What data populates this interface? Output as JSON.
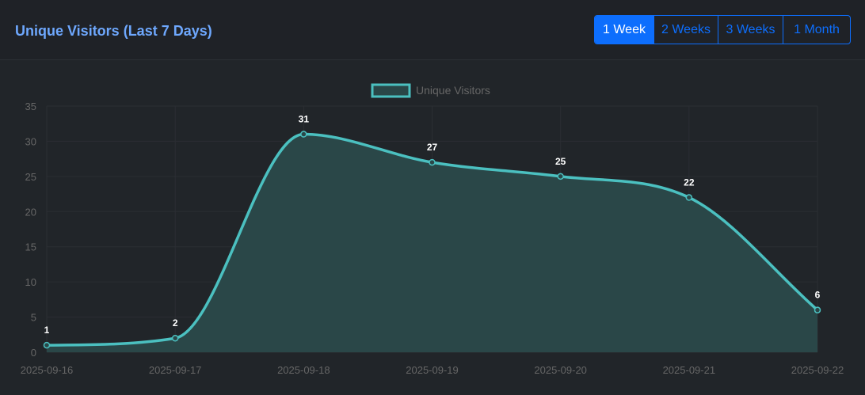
{
  "header": {
    "title": "Unique Visitors (Last 7 Days)"
  },
  "range_buttons": [
    {
      "label": "1 Week",
      "active": true
    },
    {
      "label": "2 Weeks",
      "active": false
    },
    {
      "label": "3 Weeks",
      "active": false
    },
    {
      "label": "1 Month",
      "active": false
    }
  ],
  "colors": {
    "line": "#4bc0c0",
    "fill": "#2a4748",
    "title": "#6ea8fe",
    "accent": "#0d6efd"
  },
  "chart_data": {
    "type": "area",
    "x": [
      "2025-09-16",
      "2025-09-17",
      "2025-09-18",
      "2025-09-19",
      "2025-09-20",
      "2025-09-21",
      "2025-09-22"
    ],
    "series": [
      {
        "name": "Unique Visitors",
        "values": [
          1,
          2,
          31,
          27,
          25,
          22,
          6
        ]
      }
    ],
    "ylim": [
      0,
      35
    ],
    "yticks": [
      0,
      5,
      10,
      15,
      20,
      25,
      30,
      35
    ],
    "data_labels": true,
    "grid": true,
    "legend": "top-center",
    "smooth": true
  }
}
